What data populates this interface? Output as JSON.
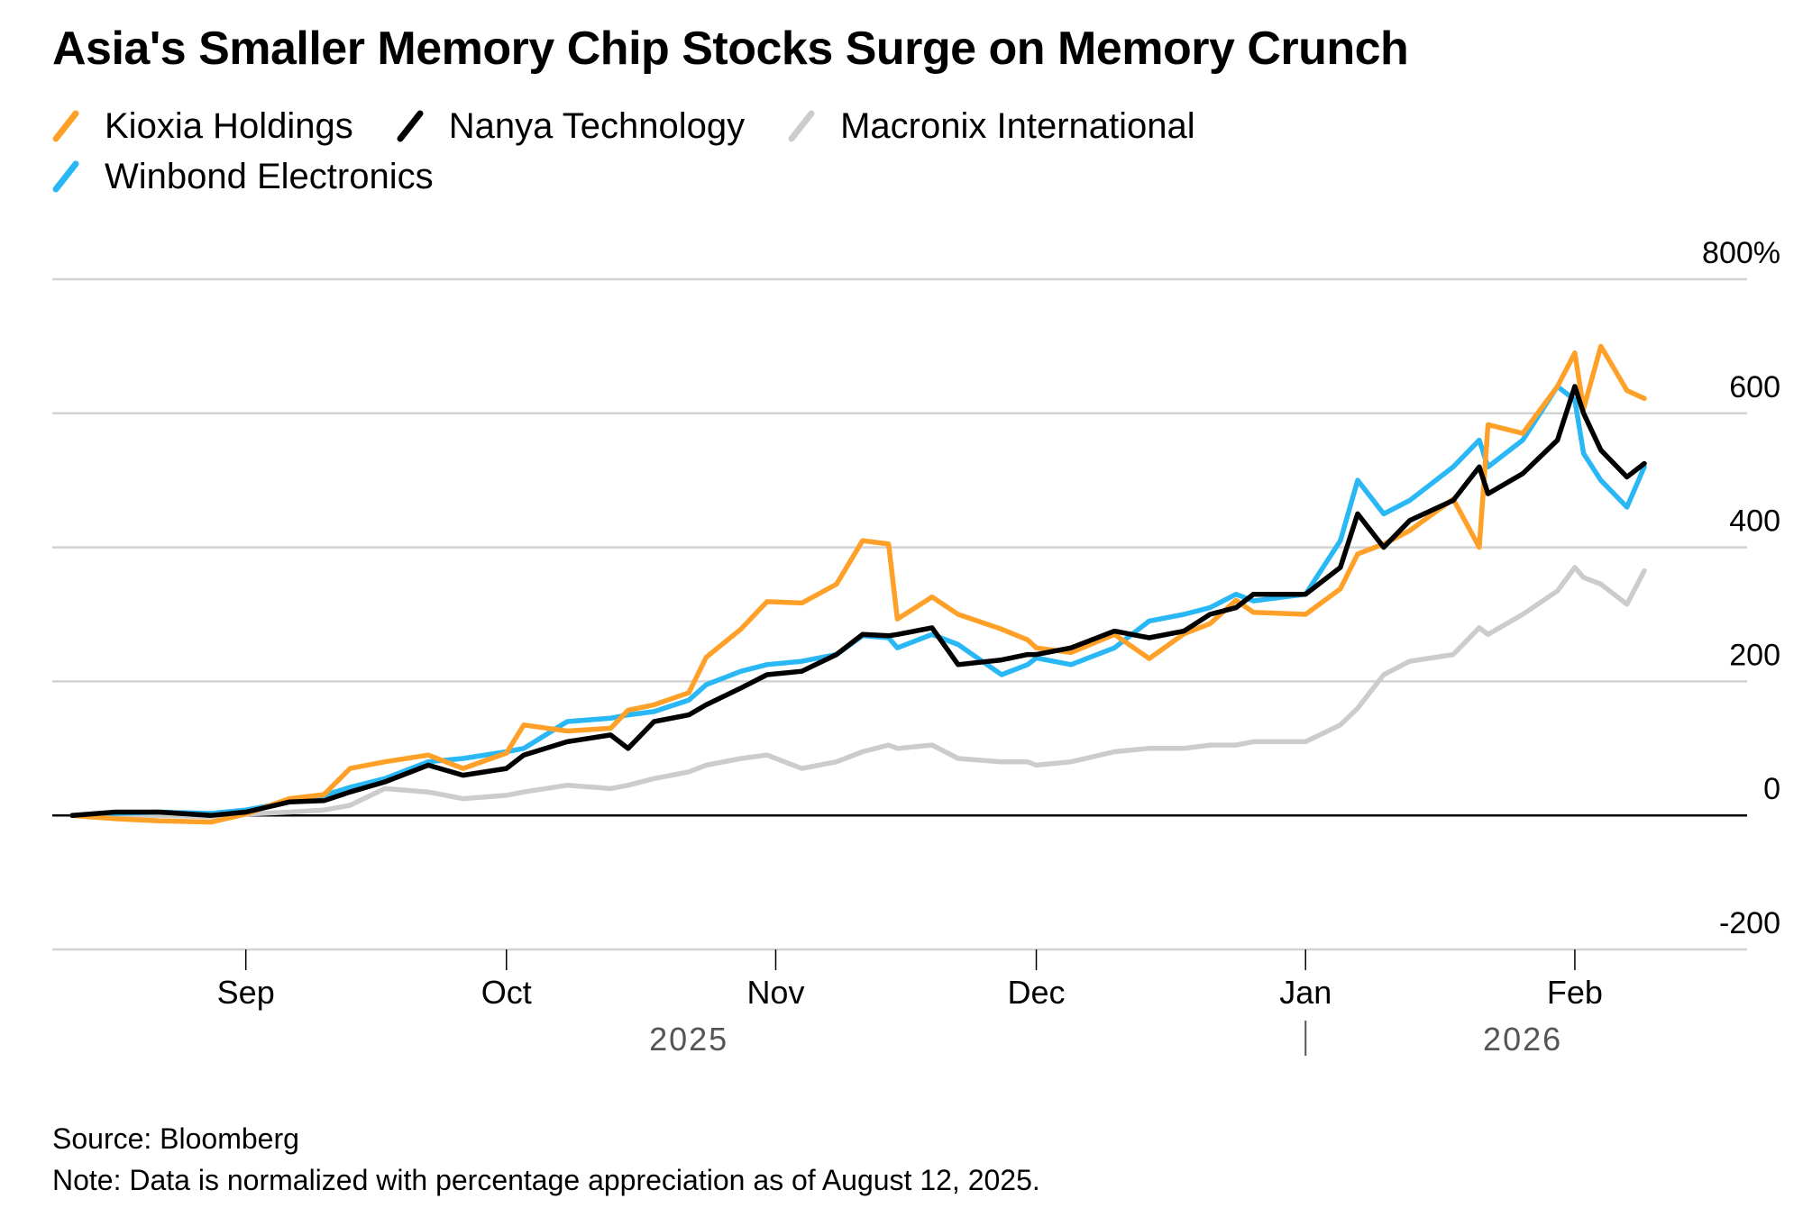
{
  "title": "Asia's Smaller Memory Chip Stocks Surge on Memory Crunch",
  "footer": {
    "source": "Source: Bloomberg",
    "note": "Note: Data is normalized with percentage appreciation as of August 12, 2025."
  },
  "chart_data": {
    "type": "line",
    "title": "Asia's Smaller Memory Chip Stocks Surge on Memory Crunch",
    "xlabel": "",
    "ylabel": "",
    "ylim": [
      -200,
      800
    ],
    "yticks": [
      800,
      600,
      400,
      200,
      0,
      -200
    ],
    "ytick_labels": [
      "800%",
      "600",
      "400",
      "200",
      "0",
      "-200"
    ],
    "xlim": [
      "2025-08-12",
      "2026-02-09"
    ],
    "xticks": [
      {
        "date": "2025-09-01",
        "label": "Sep"
      },
      {
        "date": "2025-10-01",
        "label": "Oct"
      },
      {
        "date": "2025-11-01",
        "label": "Nov"
      },
      {
        "date": "2025-12-01",
        "label": "Dec"
      },
      {
        "date": "2026-01-01",
        "label": "Jan"
      },
      {
        "date": "2026-02-01",
        "label": "Feb"
      }
    ],
    "year_labels": [
      {
        "label": "2025",
        "center": "2025-10-22"
      },
      {
        "label": "2026",
        "center": "2026-01-26"
      }
    ],
    "year_divider": "2026-01-01",
    "grid": true,
    "legend_position": "top-left",
    "x": [
      "2025-08-12",
      "2025-08-17",
      "2025-08-22",
      "2025-08-28",
      "2025-09-01",
      "2025-09-06",
      "2025-09-10",
      "2025-09-13",
      "2025-09-17",
      "2025-09-22",
      "2025-09-26",
      "2025-10-01",
      "2025-10-03",
      "2025-10-08",
      "2025-10-13",
      "2025-10-15",
      "2025-10-18",
      "2025-10-22",
      "2025-10-24",
      "2025-10-28",
      "2025-10-31",
      "2025-11-04",
      "2025-11-08",
      "2025-11-11",
      "2025-11-14",
      "2025-11-15",
      "2025-11-19",
      "2025-11-22",
      "2025-11-27",
      "2025-11-30",
      "2025-12-01",
      "2025-12-05",
      "2025-12-10",
      "2025-12-14",
      "2025-12-18",
      "2025-12-21",
      "2025-12-24",
      "2025-12-26",
      "2026-01-01",
      "2026-01-05",
      "2026-01-07",
      "2026-01-10",
      "2026-01-13",
      "2026-01-18",
      "2026-01-21",
      "2026-01-22",
      "2026-01-26",
      "2026-01-30",
      "2026-02-01",
      "2026-02-02",
      "2026-02-04",
      "2026-02-07",
      "2026-02-09"
    ],
    "series": [
      {
        "name": "Macronix International",
        "color": "#CCCCCC",
        "values": [
          0,
          0,
          0,
          -2,
          2,
          5,
          8,
          15,
          40,
          35,
          25,
          30,
          35,
          45,
          40,
          45,
          55,
          65,
          75,
          85,
          90,
          70,
          80,
          95,
          105,
          100,
          105,
          85,
          80,
          80,
          75,
          80,
          95,
          100,
          100,
          105,
          105,
          110,
          110,
          135,
          160,
          210,
          230,
          240,
          280,
          270,
          300,
          335,
          370,
          355,
          345,
          315,
          365
        ]
      },
      {
        "name": "Winbond Electronics",
        "color": "#29B8F5",
        "values": [
          0,
          3,
          5,
          3,
          8,
          20,
          30,
          42,
          55,
          80,
          85,
          95,
          100,
          140,
          145,
          150,
          155,
          172,
          195,
          215,
          225,
          230,
          240,
          268,
          265,
          250,
          270,
          255,
          210,
          225,
          235,
          225,
          250,
          290,
          300,
          310,
          330,
          320,
          330,
          410,
          500,
          450,
          470,
          520,
          560,
          520,
          560,
          640,
          620,
          540,
          500,
          460,
          520
        ]
      },
      {
        "name": "Kioxia Holdings",
        "color": "#FFA028",
        "values": [
          0,
          -5,
          -8,
          -10,
          2,
          25,
          31,
          70,
          80,
          90,
          70,
          93,
          135,
          126,
          130,
          157,
          165,
          183,
          236,
          278,
          319,
          317,
          345,
          410,
          405,
          293,
          326,
          300,
          278,
          262,
          250,
          243,
          270,
          234,
          271,
          286,
          321,
          303,
          300,
          338,
          390,
          405,
          425,
          472,
          400,
          583,
          570,
          640,
          690,
          607,
          700,
          634,
          622
        ]
      },
      {
        "name": "Nanya Technology",
        "color": "#000000",
        "values": [
          0,
          5,
          5,
          0,
          5,
          20,
          22,
          35,
          50,
          75,
          60,
          70,
          90,
          110,
          120,
          100,
          140,
          150,
          165,
          190,
          210,
          215,
          240,
          270,
          268,
          270,
          280,
          225,
          232,
          240,
          240,
          250,
          275,
          265,
          275,
          300,
          310,
          330,
          330,
          370,
          450,
          400,
          440,
          470,
          520,
          480,
          510,
          560,
          640,
          600,
          545,
          505,
          525
        ]
      }
    ]
  },
  "legend": [
    {
      "name": "Kioxia Holdings",
      "color": "#FFA028"
    },
    {
      "name": "Nanya Technology",
      "color": "#000000"
    },
    {
      "name": "Macronix International",
      "color": "#CCCCCC"
    },
    {
      "name": "Winbond Electronics",
      "color": "#29B8F5"
    }
  ]
}
